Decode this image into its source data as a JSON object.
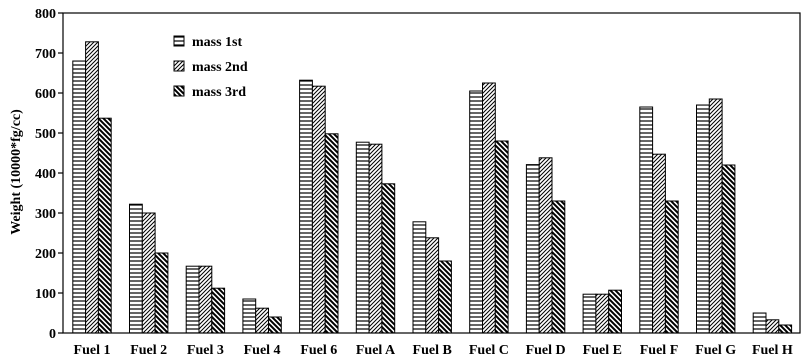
{
  "chart_data": {
    "type": "bar",
    "title": "",
    "xlabel": "",
    "ylabel": "Weight (10000*fg/cc)",
    "ylim": [
      0,
      800
    ],
    "yticks": [
      0,
      100,
      200,
      300,
      400,
      500,
      600,
      700,
      800
    ],
    "grid": false,
    "legend_position": "top-left",
    "categories": [
      "Fuel 1",
      "Fuel 2",
      "Fuel 3",
      "Fuel 4",
      "Fuel 6",
      "Fuel A",
      "Fuel B",
      "Fuel C",
      "Fuel D",
      "Fuel E",
      "Fuel F",
      "Fuel G",
      "Fuel H"
    ],
    "series": [
      {
        "name": "mass 1st",
        "pattern": "horizontal-lines",
        "values": [
          680,
          322,
          167,
          85,
          632,
          477,
          278,
          605,
          421,
          97,
          565,
          570,
          50
        ]
      },
      {
        "name": "mass 2nd",
        "pattern": "forward-diagonal",
        "values": [
          728,
          300,
          167,
          62,
          617,
          472,
          238,
          625,
          438,
          97,
          447,
          585,
          33
        ]
      },
      {
        "name": "mass 3rd",
        "pattern": "backward-diagonal",
        "values": [
          537,
          200,
          112,
          40,
          498,
          373,
          180,
          480,
          330,
          107,
          330,
          420,
          20
        ]
      }
    ]
  }
}
